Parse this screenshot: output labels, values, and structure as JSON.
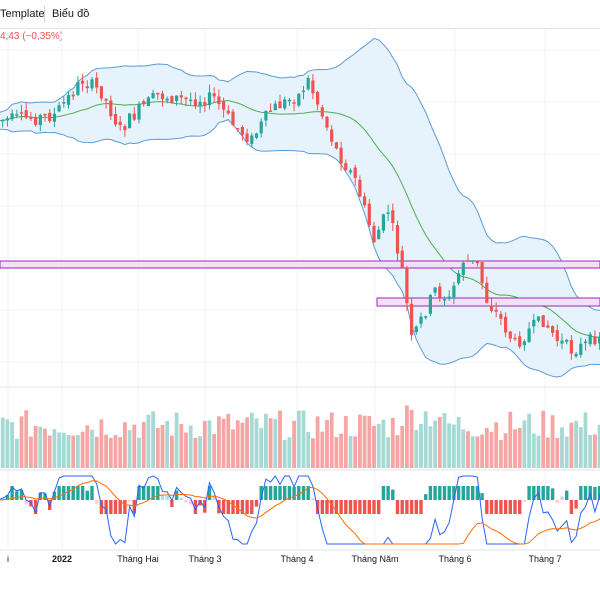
{
  "toolbar": {
    "template_tab": "Template",
    "chart_tab": "Biểu đồ"
  },
  "header": {
    "change_text": "4,43 (−0,35%)"
  },
  "colors": {
    "up": "#26a69a",
    "down": "#ef5350",
    "volume_up": "#a7d9d4",
    "volume_down": "#f5a5a3",
    "bollinger_band": "#5b9bd5",
    "bollinger_fill": "#e3f1fb",
    "middle_band": "#4caf50",
    "zone_border": "#9c27b0",
    "zone_fill": "#f3e0f7",
    "macd_line": "#2962ff",
    "signal_line": "#ff6d00",
    "hist_up_strong": "#26a69a",
    "hist_up_weak": "#b2dfdb",
    "hist_down_strong": "#ef5350",
    "hist_down_weak": "#ffcdd2"
  },
  "chart_data": {
    "type": "candlestick",
    "x_tick_labels": [
      "i",
      "2022",
      "Tháng Hai",
      "Tháng 3",
      "Tháng 4",
      "Tháng Năm",
      "Tháng 6",
      "Tháng 7"
    ],
    "bold_tick_labels": [
      "2022"
    ],
    "panes": [
      "price",
      "volume",
      "macd"
    ],
    "indicators": [
      "Bollinger Bands",
      "Volume",
      "MACD"
    ],
    "price_zones": 2,
    "grid": true
  }
}
